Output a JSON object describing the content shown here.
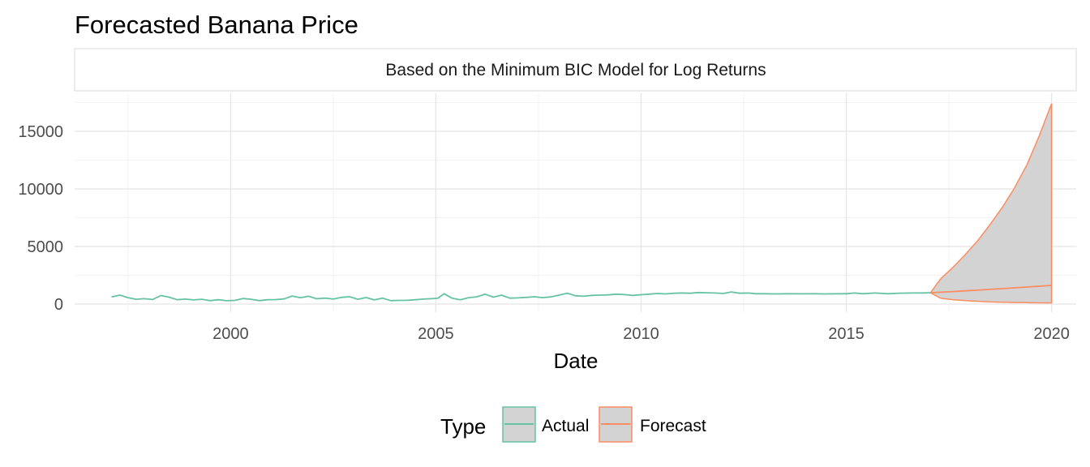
{
  "chart_data": {
    "type": "line",
    "title": "Forecasted Banana Price",
    "subtitle": "Based on the Minimum BIC Model for Log Returns",
    "xlabel": "Date",
    "ylabel": "",
    "xlim": [
      1996.2,
      2020.6
    ],
    "ylim": [
      -700,
      18300
    ],
    "x_ticks": [
      2000,
      2005,
      2010,
      2015,
      2020
    ],
    "x_tick_labels": [
      "2000",
      "2005",
      "2010",
      "2015",
      "2020"
    ],
    "y_ticks": [
      0,
      5000,
      10000,
      15000
    ],
    "y_tick_labels": [
      "0",
      "5000",
      "10000",
      "15000"
    ],
    "grid": true,
    "legend": {
      "position": "bottom",
      "title": "Type",
      "entries": [
        "Actual",
        "Forecast"
      ]
    },
    "colors": {
      "Actual": "#66c2a5",
      "Forecast": "#fc8d62",
      "band_fill": "#d3d3d3",
      "band_stroke": "#fc8d62"
    },
    "series": [
      {
        "name": "Actual",
        "x": [
          1997.1,
          1997.3,
          1997.5,
          1997.7,
          1997.9,
          1998.1,
          1998.3,
          1998.5,
          1998.7,
          1998.9,
          1999.1,
          1999.3,
          1999.5,
          1999.7,
          1999.9,
          2000.1,
          2000.3,
          2000.5,
          2000.7,
          2000.9,
          2001.1,
          2001.3,
          2001.5,
          2001.7,
          2001.9,
          2002.1,
          2002.3,
          2002.5,
          2002.7,
          2002.9,
          2003.1,
          2003.3,
          2003.5,
          2003.7,
          2003.9,
          2004.1,
          2004.3,
          2004.5,
          2004.7,
          2004.9,
          2005.05,
          2005.2,
          2005.4,
          2005.6,
          2005.8,
          2006.0,
          2006.2,
          2006.4,
          2006.6,
          2006.8,
          2007.0,
          2007.2,
          2007.4,
          2007.6,
          2007.8,
          2008.0,
          2008.2,
          2008.4,
          2008.6,
          2008.8,
          2009.0,
          2009.2,
          2009.4,
          2009.6,
          2009.8,
          2010.0,
          2010.2,
          2010.4,
          2010.6,
          2010.8,
          2011.0,
          2011.2,
          2011.4,
          2011.6,
          2011.8,
          2012.0,
          2012.2,
          2012.4,
          2012.6,
          2012.8,
          2013.0,
          2013.3,
          2013.6,
          2013.9,
          2014.2,
          2014.5,
          2014.8,
          2015.0,
          2015.2,
          2015.4,
          2015.7,
          2016.0,
          2016.3,
          2016.6,
          2016.9,
          2017.05
        ],
        "values": [
          620,
          780,
          560,
          420,
          470,
          400,
          740,
          600,
          380,
          430,
          360,
          420,
          300,
          380,
          290,
          320,
          480,
          420,
          300,
          380,
          390,
          450,
          700,
          550,
          680,
          460,
          520,
          430,
          580,
          640,
          420,
          570,
          360,
          520,
          300,
          320,
          330,
          380,
          430,
          470,
          500,
          900,
          500,
          380,
          560,
          630,
          860,
          600,
          780,
          520,
          540,
          580,
          640,
          560,
          620,
          780,
          950,
          720,
          680,
          760,
          780,
          800,
          860,
          820,
          760,
          810,
          860,
          920,
          880,
          940,
          960,
          940,
          1000,
          980,
          960,
          920,
          1050,
          940,
          960,
          900,
          900,
          880,
          900,
          890,
          900,
          880,
          900,
          900,
          960,
          900,
          960,
          900,
          950,
          960,
          970,
          980
        ]
      },
      {
        "name": "Forecast",
        "x": [
          2017.05,
          2017.3,
          2017.6,
          2017.9,
          2018.2,
          2018.5,
          2018.8,
          2019.1,
          2019.4,
          2019.7,
          2020.0
        ],
        "values": [
          980,
          1030,
          1090,
          1150,
          1210,
          1280,
          1340,
          1410,
          1480,
          1550,
          1620
        ],
        "upper": [
          980,
          2200,
          3200,
          4300,
          5500,
          6900,
          8400,
          10100,
          12100,
          14600,
          17400
        ],
        "lower": [
          980,
          500,
          380,
          300,
          240,
          190,
          160,
          140,
          120,
          110,
          100
        ]
      }
    ]
  }
}
